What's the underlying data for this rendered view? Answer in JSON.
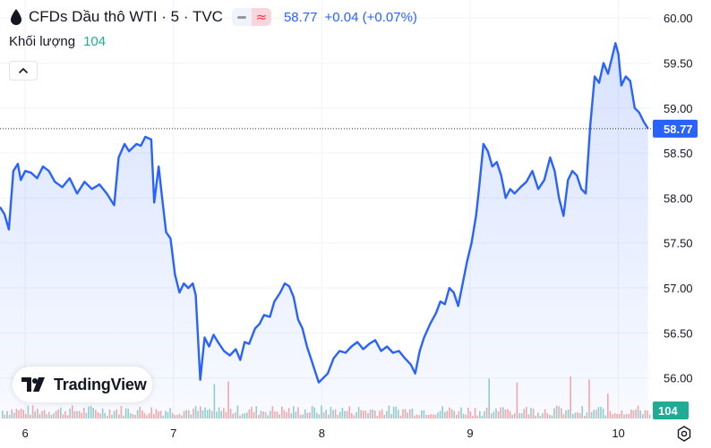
{
  "header": {
    "title": "CFDs Dầu thô WTI · 5 · TVC",
    "price": "58.77",
    "change": "+0.04 (+0.07%)"
  },
  "volume": {
    "label": "Khối lượng",
    "value": "104"
  },
  "logo": {
    "text": "TradingView"
  },
  "colors": {
    "line": "#2962ff",
    "up_volume": "#26a69a",
    "down_volume": "#ef5350",
    "price_tag": "#2962ff",
    "volume_tag": "#22ab94"
  },
  "chart_data": {
    "type": "area",
    "ylim": [
      55.55,
      60.2
    ],
    "y_ticks": [
      "60.00",
      "59.50",
      "59.00",
      "58.50",
      "58.00",
      "57.50",
      "57.00",
      "56.50",
      "56.00"
    ],
    "y_tick_values": [
      60.0,
      59.5,
      59.0,
      58.5,
      58.0,
      57.5,
      57.0,
      56.5,
      56.0
    ],
    "x_ticks": [
      "6",
      "7",
      "8",
      "9",
      "10"
    ],
    "x_tick_positions": [
      6,
      7,
      8,
      9,
      10
    ],
    "xlim": [
      5.83,
      10.22
    ],
    "last_price": 58.77,
    "last_price_label": "58.77",
    "last_volume_label": "104",
    "series": [
      {
        "values": [
          [
            5.83,
            57.9
          ],
          [
            5.86,
            57.82
          ],
          [
            5.89,
            57.65
          ],
          [
            5.92,
            58.3
          ],
          [
            5.95,
            58.38
          ],
          [
            5.97,
            58.2
          ],
          [
            6.0,
            58.3
          ],
          [
            6.04,
            58.28
          ],
          [
            6.08,
            58.22
          ],
          [
            6.12,
            58.35
          ],
          [
            6.16,
            58.3
          ],
          [
            6.2,
            58.18
          ],
          [
            6.25,
            58.12
          ],
          [
            6.3,
            58.22
          ],
          [
            6.35,
            58.05
          ],
          [
            6.4,
            58.18
          ],
          [
            6.45,
            58.1
          ],
          [
            6.5,
            58.15
          ],
          [
            6.55,
            58.05
          ],
          [
            6.6,
            57.92
          ],
          [
            6.63,
            58.45
          ],
          [
            6.67,
            58.6
          ],
          [
            6.7,
            58.52
          ],
          [
            6.75,
            58.6
          ],
          [
            6.78,
            58.58
          ],
          [
            6.81,
            58.68
          ],
          [
            6.85,
            58.65
          ],
          [
            6.87,
            57.95
          ],
          [
            6.9,
            58.35
          ],
          [
            6.92,
            58.05
          ],
          [
            6.95,
            57.62
          ],
          [
            6.98,
            57.55
          ],
          [
            7.01,
            57.15
          ],
          [
            7.04,
            56.95
          ],
          [
            7.07,
            57.05
          ],
          [
            7.1,
            57.0
          ],
          [
            7.13,
            57.05
          ],
          [
            7.15,
            56.92
          ],
          [
            7.18,
            55.98
          ],
          [
            7.21,
            56.45
          ],
          [
            7.24,
            56.35
          ],
          [
            7.27,
            56.48
          ],
          [
            7.3,
            56.4
          ],
          [
            7.34,
            56.3
          ],
          [
            7.38,
            56.25
          ],
          [
            7.42,
            56.32
          ],
          [
            7.45,
            56.2
          ],
          [
            7.48,
            56.4
          ],
          [
            7.51,
            56.38
          ],
          [
            7.55,
            56.55
          ],
          [
            7.58,
            56.6
          ],
          [
            7.61,
            56.7
          ],
          [
            7.65,
            56.68
          ],
          [
            7.68,
            56.85
          ],
          [
            7.72,
            56.95
          ],
          [
            7.75,
            57.05
          ],
          [
            7.78,
            57.02
          ],
          [
            7.81,
            56.9
          ],
          [
            7.84,
            56.65
          ],
          [
            7.87,
            56.55
          ],
          [
            7.9,
            56.35
          ],
          [
            7.93,
            56.2
          ],
          [
            7.96,
            56.05
          ],
          [
            7.98,
            55.95
          ],
          [
            8.01,
            56.0
          ],
          [
            8.04,
            56.05
          ],
          [
            8.08,
            56.22
          ],
          [
            8.12,
            56.3
          ],
          [
            8.16,
            56.28
          ],
          [
            8.2,
            56.35
          ],
          [
            8.24,
            56.4
          ],
          [
            8.28,
            56.32
          ],
          [
            8.32,
            56.38
          ],
          [
            8.36,
            56.42
          ],
          [
            8.4,
            56.3
          ],
          [
            8.44,
            56.35
          ],
          [
            8.48,
            56.28
          ],
          [
            8.52,
            56.3
          ],
          [
            8.56,
            56.22
          ],
          [
            8.6,
            56.15
          ],
          [
            8.63,
            56.05
          ],
          [
            8.66,
            56.3
          ],
          [
            8.69,
            56.45
          ],
          [
            8.73,
            56.6
          ],
          [
            8.77,
            56.72
          ],
          [
            8.8,
            56.85
          ],
          [
            8.83,
            56.82
          ],
          [
            8.86,
            57.0
          ],
          [
            8.89,
            56.95
          ],
          [
            8.92,
            56.8
          ],
          [
            8.95,
            57.05
          ],
          [
            8.98,
            57.3
          ],
          [
            9.01,
            57.5
          ],
          [
            9.04,
            57.8
          ],
          [
            9.06,
            58.1
          ],
          [
            9.09,
            58.6
          ],
          [
            9.12,
            58.52
          ],
          [
            9.15,
            58.35
          ],
          [
            9.18,
            58.4
          ],
          [
            9.21,
            58.25
          ],
          [
            9.24,
            58.0
          ],
          [
            9.27,
            58.1
          ],
          [
            9.3,
            58.05
          ],
          [
            9.34,
            58.12
          ],
          [
            9.38,
            58.18
          ],
          [
            9.42,
            58.3
          ],
          [
            9.46,
            58.1
          ],
          [
            9.5,
            58.2
          ],
          [
            9.54,
            58.45
          ],
          [
            9.57,
            58.3
          ],
          [
            9.6,
            58.0
          ],
          [
            9.63,
            57.8
          ],
          [
            9.66,
            58.2
          ],
          [
            9.69,
            58.3
          ],
          [
            9.72,
            58.25
          ],
          [
            9.75,
            58.1
          ],
          [
            9.78,
            58.05
          ],
          [
            9.81,
            58.8
          ],
          [
            9.84,
            59.35
          ],
          [
            9.87,
            59.28
          ],
          [
            9.9,
            59.5
          ],
          [
            9.93,
            59.38
          ],
          [
            9.96,
            59.58
          ],
          [
            9.98,
            59.72
          ],
          [
            10.0,
            59.6
          ],
          [
            10.02,
            59.25
          ],
          [
            10.05,
            59.35
          ],
          [
            10.08,
            59.3
          ],
          [
            10.11,
            59.0
          ],
          [
            10.14,
            58.95
          ],
          [
            10.17,
            58.85
          ],
          [
            10.2,
            58.77
          ]
        ]
      }
    ]
  }
}
